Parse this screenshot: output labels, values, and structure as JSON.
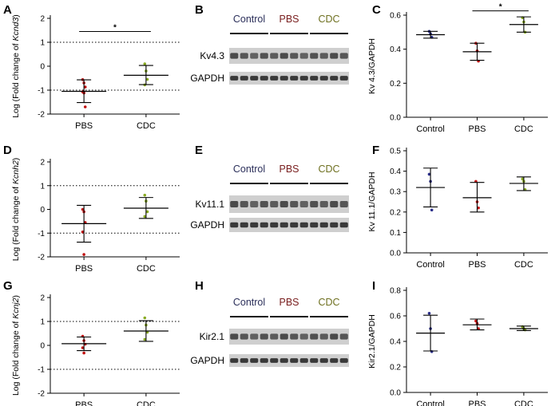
{
  "panel_letters": [
    "A",
    "B",
    "C",
    "D",
    "E",
    "F",
    "G",
    "H",
    "I"
  ],
  "colors": {
    "Control": "#2b2f5a",
    "PBS": "#7a2020",
    "CDC": "#6e7020",
    "point_Control": "#2b2f8a",
    "point_PBS": "#c01010",
    "point_CDC": "#88aa22"
  },
  "blots": [
    {
      "letter": "B",
      "groups": [
        "Control",
        "PBS",
        "CDC"
      ],
      "target": "Kv4.3",
      "loading": "GAPDH"
    },
    {
      "letter": "E",
      "groups": [
        "Control",
        "PBS",
        "CDC"
      ],
      "target": "Kv11.1",
      "loading": "GAPDH"
    },
    {
      "letter": "H",
      "groups": [
        "Control",
        "PBS",
        "CDC"
      ],
      "target": "Kir2.1",
      "loading": "GAPDH"
    }
  ],
  "chart_data": [
    {
      "letter": "A",
      "type": "scatter",
      "ylabel_prefix": "Log (Fold change of ",
      "ylabel_gene": "Kcnd3",
      "ylabel_suffix": ")",
      "categories": [
        "PBS",
        "CDC"
      ],
      "ylim": [
        -2,
        2
      ],
      "yticks": [
        -2,
        -1,
        0,
        1,
        2
      ],
      "dotted_lines": [
        -1,
        1
      ],
      "groups": [
        {
          "name": "PBS",
          "mean": -1.05,
          "err_low": -1.52,
          "err_high": -0.57,
          "points": [
            -0.56,
            -0.7,
            -0.87,
            -1.07,
            -1.12,
            -1.7
          ]
        },
        {
          "name": "CDC",
          "mean": -0.38,
          "err_low": -0.77,
          "err_high": 0.03,
          "points": [
            0.1,
            -0.2,
            -0.55,
            -0.78
          ]
        }
      ],
      "significance": {
        "from": "PBS",
        "to": "CDC",
        "label": "*",
        "y": 1.45
      }
    },
    {
      "letter": "C",
      "type": "scatter",
      "ylabel": "Kv 4.3/GAPDH",
      "categories": [
        "Control",
        "PBS",
        "CDC"
      ],
      "ylim": [
        0,
        0.6
      ],
      "yticks": [
        0,
        0.2,
        0.4,
        0.6
      ],
      "yticklabels": [
        "0.0",
        "0.2",
        "0.4",
        "0.6"
      ],
      "dotted_lines": [],
      "groups": [
        {
          "name": "Control",
          "mean": 0.485,
          "err_low": 0.465,
          "err_high": 0.505,
          "points": [
            0.505,
            0.49,
            0.47
          ]
        },
        {
          "name": "PBS",
          "mean": 0.385,
          "err_low": 0.335,
          "err_high": 0.435,
          "points": [
            0.435,
            0.39,
            0.33
          ]
        },
        {
          "name": "CDC",
          "mean": 0.545,
          "err_low": 0.5,
          "err_high": 0.59,
          "points": [
            0.585,
            0.56,
            0.5
          ]
        }
      ],
      "significance": {
        "from": "PBS",
        "to": "CDC",
        "label": "*",
        "y": 0.625
      }
    },
    {
      "letter": "D",
      "type": "scatter",
      "ylabel_prefix": "Log (Fold change of ",
      "ylabel_gene": "Kcnh2",
      "ylabel_suffix": ")",
      "categories": [
        "PBS",
        "CDC"
      ],
      "ylim": [
        -2,
        2
      ],
      "yticks": [
        -2,
        -1,
        0,
        1,
        2
      ],
      "dotted_lines": [
        -1,
        1
      ],
      "groups": [
        {
          "name": "PBS",
          "mean": -0.6,
          "err_low": -1.38,
          "err_high": 0.17,
          "points": [
            0.0,
            -0.1,
            -0.55,
            -0.95,
            -1.9
          ]
        },
        {
          "name": "CDC",
          "mean": 0.05,
          "err_low": -0.38,
          "err_high": 0.5,
          "points": [
            0.6,
            0.35,
            -0.1,
            -0.3
          ]
        }
      ],
      "significance": null
    },
    {
      "letter": "F",
      "type": "scatter",
      "ylabel": "Kv 11.1/GAPDH",
      "categories": [
        "Control",
        "PBS",
        "CDC"
      ],
      "ylim": [
        0,
        0.5
      ],
      "yticks": [
        0,
        0.1,
        0.2,
        0.3,
        0.4,
        0.5
      ],
      "yticklabels": [
        "0.0",
        "0.1",
        "0.2",
        "0.3",
        "0.4",
        "0.5"
      ],
      "dotted_lines": [],
      "groups": [
        {
          "name": "Control",
          "mean": 0.32,
          "err_low": 0.225,
          "err_high": 0.415,
          "points": [
            0.385,
            0.35,
            0.21
          ]
        },
        {
          "name": "PBS",
          "mean": 0.27,
          "err_low": 0.2,
          "err_high": 0.345,
          "points": [
            0.35,
            0.25,
            0.22
          ]
        },
        {
          "name": "CDC",
          "mean": 0.34,
          "err_low": 0.305,
          "err_high": 0.372,
          "points": [
            0.362,
            0.35,
            0.31
          ]
        }
      ],
      "significance": null
    },
    {
      "letter": "G",
      "type": "scatter",
      "ylabel_prefix": "Log (Fold change of ",
      "ylabel_gene": "Kcnj2",
      "ylabel_suffix": ")",
      "categories": [
        "PBS",
        "CDC"
      ],
      "ylim": [
        -2,
        2
      ],
      "yticks": [
        -2,
        -1,
        0,
        1,
        2
      ],
      "dotted_lines": [
        -1,
        1
      ],
      "groups": [
        {
          "name": "PBS",
          "mean": 0.07,
          "err_low": -0.22,
          "err_high": 0.35,
          "points": [
            0.38,
            0.2,
            0.05,
            -0.1,
            -0.32
          ]
        },
        {
          "name": "CDC",
          "mean": 0.6,
          "err_low": 0.17,
          "err_high": 1.03,
          "points": [
            1.15,
            0.85,
            0.55,
            0.25
          ]
        }
      ],
      "significance": null
    },
    {
      "letter": "I",
      "type": "scatter",
      "ylabel": "Kir2.1/GAPDH",
      "categories": [
        "Control",
        "PBS",
        "CDC"
      ],
      "ylim": [
        0,
        0.8
      ],
      "yticks": [
        0,
        0.2,
        0.4,
        0.6,
        0.8
      ],
      "yticklabels": [
        "0.0",
        "0.2",
        "0.4",
        "0.6",
        "0.8"
      ],
      "dotted_lines": [],
      "groups": [
        {
          "name": "Control",
          "mean": 0.465,
          "err_low": 0.325,
          "err_high": 0.605,
          "points": [
            0.62,
            0.5,
            0.32
          ]
        },
        {
          "name": "PBS",
          "mean": 0.53,
          "err_low": 0.49,
          "err_high": 0.575,
          "points": [
            0.56,
            0.54,
            0.5
          ]
        },
        {
          "name": "CDC",
          "mean": 0.5,
          "err_low": 0.485,
          "err_high": 0.52,
          "points": [
            0.515,
            0.5,
            0.49
          ]
        }
      ],
      "significance": null
    }
  ]
}
